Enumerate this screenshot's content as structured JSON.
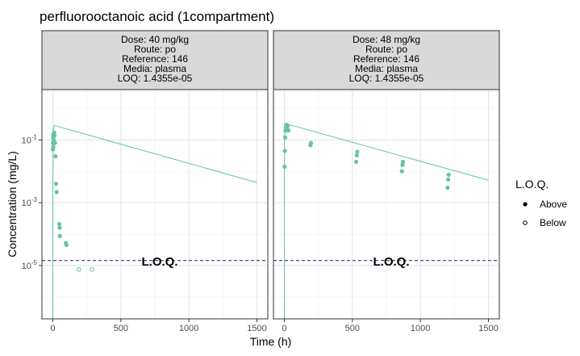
{
  "chart_data": {
    "type": "scatter",
    "title": "perfluorooctanoic acid (1compartment)",
    "xlabel": "Time (h)",
    "ylabel": "Concentration (mg/L)",
    "x_ticks": [
      0,
      500,
      1000,
      1500
    ],
    "x_tick_labels": [
      "0",
      "500",
      "1000",
      "1500"
    ],
    "xlim": [
      -80,
      1580
    ],
    "y_scale": "log10",
    "y_ticks": [
      0.1,
      0.001,
      1e-05
    ],
    "y_tick_labels": [
      {
        "base": "10",
        "exp": "-1"
      },
      {
        "base": "10",
        "exp": "-3"
      },
      {
        "base": "10",
        "exp": "-5"
      }
    ],
    "ylim": [
      2e-07,
      4
    ],
    "grid": true,
    "legend": {
      "title": "L.O.Q.",
      "position": "right",
      "entries": [
        {
          "label": "Above",
          "filled": true
        },
        {
          "label": "Below",
          "filled": false
        }
      ]
    },
    "loq_label": "L.O.Q.",
    "point_color": "#66c2a5",
    "line_color": "#66c2a5",
    "loq_line_color": "#191970",
    "strip_fill": "#d9d9d9",
    "panels": [
      {
        "strip": [
          "Dose: 40 mg/kg",
          "Route: po",
          "Reference: 146",
          "Media: plasma",
          "LOQ: 1.4355e-05"
        ],
        "loq": 1.4355e-05,
        "fit_line": [
          {
            "x": 0,
            "y": 2e-07
          },
          {
            "x": 1,
            "y": 0.004
          },
          {
            "x": 2,
            "y": 0.06
          },
          {
            "x": 4,
            "y": 0.2
          },
          {
            "x": 10,
            "y": 0.29
          },
          {
            "x": 1500,
            "y": 0.0044
          }
        ],
        "points": [
          {
            "x": 0.5,
            "y": 0.05,
            "above": true
          },
          {
            "x": 1,
            "y": 0.08,
            "above": true
          },
          {
            "x": 2,
            "y": 0.12,
            "above": true
          },
          {
            "x": 3,
            "y": 0.15,
            "above": true
          },
          {
            "x": 4,
            "y": 0.06,
            "above": true
          },
          {
            "x": 6,
            "y": 0.1,
            "above": true
          },
          {
            "x": 8,
            "y": 0.13,
            "above": true
          },
          {
            "x": 10,
            "y": 0.17,
            "above": true
          },
          {
            "x": 12,
            "y": 0.14,
            "above": true
          },
          {
            "x": 16,
            "y": 0.08,
            "above": true
          },
          {
            "x": 20,
            "y": 0.03,
            "above": true
          },
          {
            "x": 24,
            "y": 0.004,
            "above": true
          },
          {
            "x": 28,
            "y": 0.0022,
            "above": true
          },
          {
            "x": 48,
            "y": 0.00021,
            "above": true
          },
          {
            "x": 50,
            "y": 0.00016,
            "above": true
          },
          {
            "x": 52,
            "y": 8.7e-05,
            "above": true
          },
          {
            "x": 96,
            "y": 5.2e-05,
            "above": true
          },
          {
            "x": 100,
            "y": 4.5e-05,
            "above": true
          },
          {
            "x": 192,
            "y": 7.5e-06,
            "above": false
          },
          {
            "x": 288,
            "y": 7.5e-06,
            "above": false
          }
        ]
      },
      {
        "strip": [
          "Dose: 48 mg/kg",
          "Route: po",
          "Reference: 146",
          "Media: plasma",
          "LOQ: 1.4355e-05"
        ],
        "loq": 1.4355e-05,
        "fit_line": [
          {
            "x": 0,
            "y": 2e-07
          },
          {
            "x": 1,
            "y": 0.006
          },
          {
            "x": 2,
            "y": 0.09
          },
          {
            "x": 4,
            "y": 0.3
          },
          {
            "x": 10,
            "y": 0.33
          },
          {
            "x": 1500,
            "y": 0.0052
          }
        ],
        "points": [
          {
            "x": 2,
            "y": 0.014,
            "above": true
          },
          {
            "x": 4,
            "y": 0.045,
            "above": true
          },
          {
            "x": 6,
            "y": 0.12,
            "above": true
          },
          {
            "x": 8,
            "y": 0.2,
            "above": true
          },
          {
            "x": 12,
            "y": 0.25,
            "above": true
          },
          {
            "x": 16,
            "y": 0.3,
            "above": true
          },
          {
            "x": 20,
            "y": 0.22,
            "above": true
          },
          {
            "x": 24,
            "y": 0.28,
            "above": true
          },
          {
            "x": 30,
            "y": 0.2,
            "above": true
          },
          {
            "x": 192,
            "y": 0.068,
            "above": true
          },
          {
            "x": 196,
            "y": 0.08,
            "above": true
          },
          {
            "x": 528,
            "y": 0.02,
            "above": true
          },
          {
            "x": 532,
            "y": 0.032,
            "above": true
          },
          {
            "x": 536,
            "y": 0.042,
            "above": true
          },
          {
            "x": 864,
            "y": 0.01,
            "above": true
          },
          {
            "x": 868,
            "y": 0.016,
            "above": true
          },
          {
            "x": 872,
            "y": 0.02,
            "above": true
          },
          {
            "x": 1200,
            "y": 0.003,
            "above": true
          },
          {
            "x": 1204,
            "y": 0.0055,
            "above": true
          },
          {
            "x": 1208,
            "y": 0.0078,
            "above": true
          }
        ]
      }
    ]
  }
}
